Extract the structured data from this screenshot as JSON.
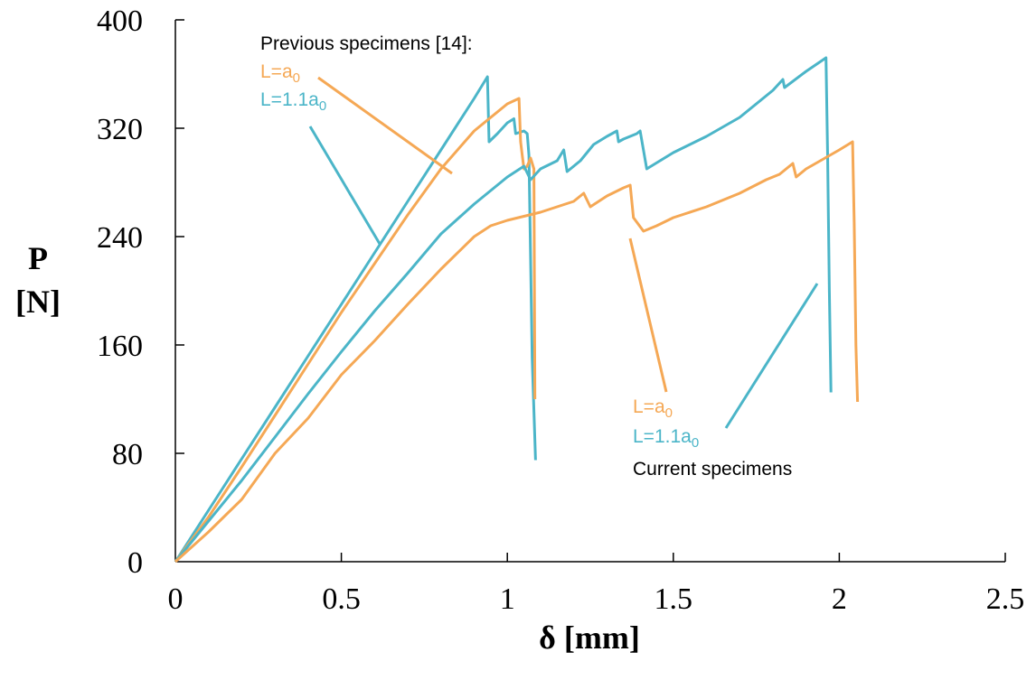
{
  "chart_data": {
    "type": "line",
    "xlabel": "δ [mm]",
    "ylabel_line1": "P",
    "ylabel_line2": "[N]",
    "xlim": [
      0,
      2.5
    ],
    "ylim": [
      0,
      400
    ],
    "x_ticks": [
      "0",
      "0.5",
      "1",
      "1.5",
      "2",
      "2.5"
    ],
    "y_ticks": [
      "0",
      "80",
      "160",
      "240",
      "320",
      "400"
    ],
    "grid": false,
    "colors": {
      "orange": "#F5A855",
      "teal": "#4BB5C8"
    },
    "annotations": {
      "previous_header": "Previous specimens [14]:",
      "previous_l_a0_main": "L=a",
      "previous_l_a0_sub": "0",
      "previous_l_11a0_main": "L=1.1a",
      "previous_l_11a0_sub": "0",
      "current_l_a0_main": "L=a",
      "current_l_a0_sub": "0",
      "current_l_11a0_main": "L=1.1a",
      "current_l_11a0_sub": "0",
      "current_header": "Current specimens"
    },
    "series": [
      {
        "color": "teal",
        "points": [
          [
            0,
            0
          ],
          [
            0.1,
            38
          ],
          [
            0.2,
            76
          ],
          [
            0.3,
            114
          ],
          [
            0.4,
            152
          ],
          [
            0.5,
            190
          ],
          [
            0.6,
            228
          ],
          [
            0.7,
            266
          ],
          [
            0.8,
            304
          ],
          [
            0.9,
            342
          ],
          [
            0.94,
            358
          ],
          [
            0.945,
            310
          ],
          [
            0.97,
            316
          ],
          [
            1.0,
            324
          ],
          [
            1.02,
            327
          ],
          [
            1.025,
            316
          ],
          [
            1.05,
            318
          ],
          [
            1.06,
            316
          ],
          [
            1.065,
            300
          ],
          [
            1.075,
            150
          ],
          [
            1.085,
            75
          ]
        ]
      },
      {
        "color": "orange",
        "points": [
          [
            0,
            0
          ],
          [
            0.1,
            33
          ],
          [
            0.2,
            70
          ],
          [
            0.3,
            108
          ],
          [
            0.4,
            146
          ],
          [
            0.5,
            184
          ],
          [
            0.6,
            220
          ],
          [
            0.7,
            256
          ],
          [
            0.8,
            290
          ],
          [
            0.9,
            318
          ],
          [
            1.0,
            338
          ],
          [
            1.035,
            342
          ],
          [
            1.04,
            310
          ],
          [
            1.045,
            300
          ],
          [
            1.05,
            290
          ],
          [
            1.06,
            292
          ],
          [
            1.07,
            298
          ],
          [
            1.08,
            290
          ],
          [
            1.083,
            120
          ]
        ]
      },
      {
        "color": "teal",
        "points": [
          [
            0,
            0
          ],
          [
            0.1,
            30
          ],
          [
            0.2,
            60
          ],
          [
            0.3,
            92
          ],
          [
            0.4,
            124
          ],
          [
            0.5,
            155
          ],
          [
            0.6,
            185
          ],
          [
            0.7,
            213
          ],
          [
            0.8,
            242
          ],
          [
            0.9,
            264
          ],
          [
            1.0,
            284
          ],
          [
            1.05,
            292
          ],
          [
            1.07,
            282
          ],
          [
            1.1,
            290
          ],
          [
            1.15,
            296
          ],
          [
            1.17,
            304
          ],
          [
            1.18,
            288
          ],
          [
            1.22,
            296
          ],
          [
            1.26,
            308
          ],
          [
            1.3,
            314
          ],
          [
            1.33,
            318
          ],
          [
            1.335,
            310
          ],
          [
            1.35,
            312
          ],
          [
            1.39,
            316
          ],
          [
            1.4,
            318
          ],
          [
            1.42,
            290
          ],
          [
            1.5,
            302
          ],
          [
            1.6,
            314
          ],
          [
            1.7,
            328
          ],
          [
            1.8,
            348
          ],
          [
            1.83,
            356
          ],
          [
            1.835,
            350
          ],
          [
            1.9,
            362
          ],
          [
            1.96,
            372
          ],
          [
            1.965,
            300
          ],
          [
            1.97,
            200
          ],
          [
            1.975,
            125
          ]
        ]
      },
      {
        "color": "orange",
        "points": [
          [
            0,
            0
          ],
          [
            0.1,
            22
          ],
          [
            0.2,
            46
          ],
          [
            0.3,
            80
          ],
          [
            0.4,
            106
          ],
          [
            0.5,
            138
          ],
          [
            0.6,
            163
          ],
          [
            0.7,
            190
          ],
          [
            0.8,
            216
          ],
          [
            0.9,
            240
          ],
          [
            0.95,
            248
          ],
          [
            1.0,
            252
          ],
          [
            1.1,
            258
          ],
          [
            1.2,
            266
          ],
          [
            1.23,
            272
          ],
          [
            1.25,
            262
          ],
          [
            1.3,
            270
          ],
          [
            1.35,
            276
          ],
          [
            1.37,
            278
          ],
          [
            1.38,
            254
          ],
          [
            1.41,
            244
          ],
          [
            1.45,
            248
          ],
          [
            1.5,
            254
          ],
          [
            1.6,
            262
          ],
          [
            1.7,
            272
          ],
          [
            1.78,
            282
          ],
          [
            1.82,
            286
          ],
          [
            1.86,
            294
          ],
          [
            1.87,
            284
          ],
          [
            1.9,
            290
          ],
          [
            2.0,
            304
          ],
          [
            2.04,
            310
          ],
          [
            2.045,
            250
          ],
          [
            2.05,
            160
          ],
          [
            2.055,
            118
          ]
        ]
      }
    ]
  }
}
